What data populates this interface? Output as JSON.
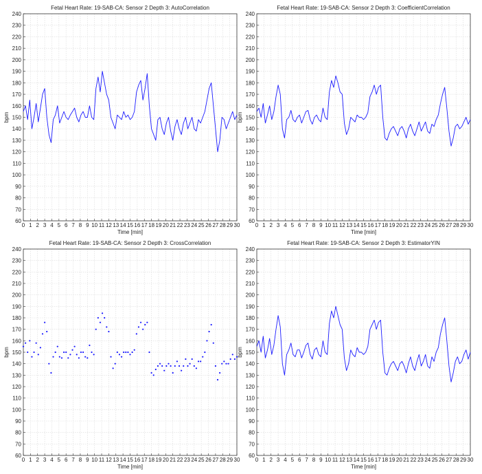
{
  "figure": {
    "background": "#ffffff"
  },
  "colors": {
    "series": "#1a1aff",
    "grid": "#d9d9d9",
    "axis": "#333333",
    "text": "#222222"
  },
  "chart_data": [
    {
      "type": "line",
      "title": "Fetal Heart Rate: 19-SAB-CA: Sensor 2 Depth 3: AutoCorrelation",
      "xlabel": "Time [min]",
      "ylabel": "bpm",
      "xlim": [
        0,
        30
      ],
      "ylim": [
        60,
        240
      ],
      "xticks": [
        0,
        1,
        2,
        3,
        4,
        5,
        6,
        7,
        8,
        9,
        10,
        11,
        12,
        13,
        14,
        15,
        16,
        17,
        18,
        19,
        20,
        21,
        22,
        23,
        24,
        25,
        26,
        27,
        28,
        29,
        30
      ],
      "yticks": [
        60,
        70,
        80,
        90,
        100,
        110,
        120,
        130,
        140,
        150,
        160,
        170,
        180,
        190,
        200,
        210,
        220,
        230,
        240
      ],
      "grid": true,
      "legend": "none",
      "series": [
        {
          "x": [
            0.0,
            0.3,
            0.6,
            0.9,
            1.2,
            1.5,
            1.8,
            2.1,
            2.4,
            2.7,
            3.0,
            3.3,
            3.6,
            3.9,
            4.2,
            4.5,
            4.8,
            5.1,
            5.4,
            5.7,
            6.0,
            6.3,
            6.6,
            6.9,
            7.2,
            7.5,
            7.8,
            8.1,
            8.4,
            8.7,
            9.0,
            9.3,
            9.6,
            9.9,
            10.2,
            10.5,
            10.8,
            11.1,
            11.4,
            11.7,
            12.0,
            12.3,
            12.6,
            12.9,
            13.2,
            13.5,
            13.8,
            14.1,
            14.4,
            14.7,
            15.0,
            15.3,
            15.6,
            15.9,
            16.2,
            16.5,
            16.8,
            17.1,
            17.4,
            17.7,
            18.0,
            18.3,
            18.6,
            18.9,
            19.2,
            19.5,
            19.8,
            20.1,
            20.4,
            20.7,
            21.0,
            21.3,
            21.6,
            21.9,
            22.2,
            22.5,
            22.8,
            23.1,
            23.4,
            23.7,
            24.0,
            24.3,
            24.6,
            24.9,
            25.2,
            25.5,
            25.8,
            26.1,
            26.4,
            26.7,
            27.0,
            27.3,
            27.6,
            27.9,
            28.2,
            28.5,
            28.8,
            29.1,
            29.4,
            29.7,
            30.0
          ],
          "y": [
            155,
            160,
            148,
            165,
            140,
            150,
            162,
            146,
            158,
            170,
            175,
            150,
            135,
            128,
            148,
            152,
            160,
            145,
            150,
            155,
            150,
            148,
            152,
            155,
            158,
            150,
            146,
            152,
            155,
            150,
            150,
            160,
            150,
            148,
            175,
            185,
            172,
            190,
            180,
            170,
            165,
            150,
            145,
            140,
            152,
            150,
            148,
            155,
            150,
            152,
            148,
            150,
            155,
            172,
            178,
            182,
            165,
            175,
            188,
            160,
            140,
            135,
            130,
            148,
            150,
            140,
            135,
            145,
            150,
            138,
            130,
            142,
            148,
            140,
            135,
            145,
            150,
            140,
            145,
            150,
            140,
            138,
            148,
            145,
            150,
            155,
            165,
            175,
            180,
            160,
            140,
            120,
            130,
            150,
            148,
            140,
            145,
            150,
            155,
            148,
            152
          ]
        }
      ]
    },
    {
      "type": "line",
      "title": "Fetal Heart Rate: 19-SAB-CA: Sensor 2 Depth 3: CoefficientCorrelation",
      "xlabel": "Time [min]",
      "ylabel": "bpm",
      "xlim": [
        0,
        30
      ],
      "ylim": [
        60,
        240
      ],
      "xticks": [
        0,
        1,
        2,
        3,
        4,
        5,
        6,
        7,
        8,
        9,
        10,
        11,
        12,
        13,
        14,
        15,
        16,
        17,
        18,
        19,
        20,
        21,
        22,
        23,
        24,
        25,
        26,
        27,
        28,
        29,
        30
      ],
      "yticks": [
        60,
        70,
        80,
        90,
        100,
        110,
        120,
        130,
        140,
        150,
        160,
        170,
        180,
        190,
        200,
        210,
        220,
        230,
        240
      ],
      "grid": true,
      "legend": "none",
      "series": [
        {
          "x": [
            0.0,
            0.3,
            0.6,
            0.9,
            1.2,
            1.5,
            1.8,
            2.1,
            2.4,
            2.7,
            3.0,
            3.3,
            3.6,
            3.9,
            4.2,
            4.5,
            4.8,
            5.1,
            5.4,
            5.7,
            6.0,
            6.3,
            6.6,
            6.9,
            7.2,
            7.5,
            7.8,
            8.1,
            8.4,
            8.7,
            9.0,
            9.3,
            9.6,
            9.9,
            10.2,
            10.5,
            10.8,
            11.1,
            11.4,
            11.7,
            12.0,
            12.3,
            12.6,
            12.9,
            13.2,
            13.5,
            13.8,
            14.1,
            14.4,
            14.7,
            15.0,
            15.3,
            15.6,
            15.9,
            16.2,
            16.5,
            16.8,
            17.1,
            17.4,
            17.7,
            18.0,
            18.3,
            18.6,
            18.9,
            19.2,
            19.5,
            19.8,
            20.1,
            20.4,
            20.7,
            21.0,
            21.3,
            21.6,
            21.9,
            22.2,
            22.5,
            22.8,
            23.1,
            23.4,
            23.7,
            24.0,
            24.3,
            24.6,
            24.9,
            25.2,
            25.5,
            25.8,
            26.1,
            26.4,
            26.7,
            27.0,
            27.3,
            27.6,
            27.9,
            28.2,
            28.5,
            28.8,
            29.1,
            29.4,
            29.7,
            30.0
          ],
          "y": [
            155,
            158,
            150,
            162,
            145,
            152,
            160,
            148,
            155,
            168,
            178,
            170,
            140,
            132,
            148,
            150,
            156,
            148,
            146,
            150,
            152,
            145,
            150,
            155,
            156,
            148,
            144,
            150,
            152,
            148,
            146,
            158,
            150,
            148,
            172,
            182,
            176,
            186,
            180,
            172,
            170,
            145,
            135,
            140,
            150,
            148,
            146,
            152,
            150,
            150,
            148,
            150,
            154,
            168,
            172,
            178,
            170,
            176,
            178,
            150,
            132,
            130,
            136,
            140,
            142,
            138,
            134,
            140,
            142,
            138,
            132,
            140,
            144,
            138,
            134,
            140,
            146,
            138,
            142,
            146,
            138,
            136,
            144,
            142,
            148,
            152,
            162,
            170,
            176,
            158,
            138,
            125,
            132,
            142,
            144,
            140,
            142,
            146,
            150,
            144,
            148
          ]
        }
      ]
    },
    {
      "type": "scatter",
      "title": "Fetal Heart Rate: 19-SAB-CA: Sensor 2 Depth 3: CrossCorrelation",
      "xlabel": "Time [min]",
      "ylabel": "bpm",
      "xlim": [
        0,
        30
      ],
      "ylim": [
        60,
        240
      ],
      "xticks": [
        0,
        1,
        2,
        3,
        4,
        5,
        6,
        7,
        8,
        9,
        10,
        11,
        12,
        13,
        14,
        15,
        16,
        17,
        18,
        19,
        20,
        21,
        22,
        23,
        24,
        25,
        26,
        27,
        28,
        29,
        30
      ],
      "yticks": [
        60,
        70,
        80,
        90,
        100,
        110,
        120,
        130,
        140,
        150,
        160,
        170,
        180,
        190,
        200,
        210,
        220,
        230,
        240
      ],
      "grid": true,
      "legend": "none",
      "series": [
        {
          "x": [
            0.0,
            0.3,
            0.6,
            0.9,
            1.2,
            1.5,
            1.8,
            2.1,
            2.4,
            2.7,
            3.0,
            3.3,
            3.6,
            3.9,
            4.2,
            4.5,
            4.8,
            5.1,
            5.4,
            5.7,
            6.0,
            6.3,
            6.6,
            6.9,
            7.2,
            7.5,
            7.8,
            8.1,
            8.4,
            8.7,
            9.0,
            9.3,
            9.6,
            9.9,
            10.2,
            10.5,
            10.8,
            11.1,
            11.4,
            11.7,
            12.0,
            12.3,
            12.6,
            12.9,
            13.2,
            13.5,
            13.8,
            14.1,
            14.4,
            14.7,
            15.0,
            15.3,
            15.6,
            15.9,
            16.2,
            16.5,
            16.8,
            17.1,
            17.4,
            17.7,
            18.0,
            18.3,
            18.6,
            18.9,
            19.2,
            19.5,
            19.8,
            20.1,
            20.4,
            20.7,
            21.0,
            21.3,
            21.6,
            21.9,
            22.2,
            22.5,
            22.8,
            23.1,
            23.4,
            23.7,
            24.0,
            24.3,
            24.6,
            24.9,
            25.2,
            25.5,
            25.8,
            26.1,
            26.4,
            26.7,
            27.0,
            27.3,
            27.6,
            27.9,
            28.2,
            28.5,
            28.8,
            29.1,
            29.4,
            29.7,
            30.0
          ],
          "y": [
            155,
            158,
            150,
            160,
            146,
            150,
            158,
            148,
            154,
            166,
            176,
            168,
            140,
            132,
            146,
            150,
            155,
            146,
            145,
            150,
            150,
            145,
            148,
            152,
            155,
            148,
            145,
            150,
            150,
            146,
            145,
            156,
            150,
            148,
            170,
            180,
            176,
            184,
            180,
            172,
            168,
            146,
            136,
            140,
            150,
            148,
            146,
            150,
            150,
            150,
            148,
            150,
            152,
            166,
            172,
            176,
            170,
            174,
            176,
            150,
            132,
            130,
            135,
            138,
            140,
            138,
            134,
            138,
            140,
            138,
            132,
            138,
            142,
            138,
            134,
            138,
            144,
            138,
            140,
            144,
            138,
            136,
            142,
            142,
            146,
            150,
            160,
            168,
            174,
            158,
            138,
            126,
            132,
            140,
            142,
            140,
            140,
            144,
            148,
            144,
            146
          ]
        }
      ]
    },
    {
      "type": "line",
      "title": "Fetal Heart Rate: 19-SAB-CA: Sensor 2 Depth 3: EstimatorYIN",
      "xlabel": "Time [min]",
      "ylabel": "bpm",
      "xlim": [
        0,
        30
      ],
      "ylim": [
        60,
        240
      ],
      "xticks": [
        0,
        1,
        2,
        3,
        4,
        5,
        6,
        7,
        8,
        9,
        10,
        11,
        12,
        13,
        14,
        15,
        16,
        17,
        18,
        19,
        20,
        21,
        22,
        23,
        24,
        25,
        26,
        27,
        28,
        29,
        30
      ],
      "yticks": [
        60,
        70,
        80,
        90,
        100,
        110,
        120,
        130,
        140,
        150,
        160,
        170,
        180,
        190,
        200,
        210,
        220,
        230,
        240
      ],
      "grid": true,
      "legend": "none",
      "series": [
        {
          "x": [
            0.0,
            0.3,
            0.6,
            0.9,
            1.2,
            1.5,
            1.8,
            2.1,
            2.4,
            2.7,
            3.0,
            3.3,
            3.6,
            3.9,
            4.2,
            4.5,
            4.8,
            5.1,
            5.4,
            5.7,
            6.0,
            6.3,
            6.6,
            6.9,
            7.2,
            7.5,
            7.8,
            8.1,
            8.4,
            8.7,
            9.0,
            9.3,
            9.6,
            9.9,
            10.2,
            10.5,
            10.8,
            11.1,
            11.4,
            11.7,
            12.0,
            12.3,
            12.6,
            12.9,
            13.2,
            13.5,
            13.8,
            14.1,
            14.4,
            14.7,
            15.0,
            15.3,
            15.6,
            15.9,
            16.2,
            16.5,
            16.8,
            17.1,
            17.4,
            17.7,
            18.0,
            18.3,
            18.6,
            18.9,
            19.2,
            19.5,
            19.8,
            20.1,
            20.4,
            20.7,
            21.0,
            21.3,
            21.6,
            21.9,
            22.2,
            22.5,
            22.8,
            23.1,
            23.4,
            23.7,
            24.0,
            24.3,
            24.6,
            24.9,
            25.2,
            25.5,
            25.8,
            26.1,
            26.4,
            26.7,
            27.0,
            27.3,
            27.6,
            27.9,
            28.2,
            28.5,
            28.8,
            29.1,
            29.4,
            29.7,
            30.0
          ],
          "y": [
            155,
            160,
            150,
            164,
            145,
            152,
            162,
            148,
            156,
            170,
            182,
            172,
            140,
            130,
            148,
            152,
            158,
            148,
            146,
            152,
            152,
            145,
            150,
            156,
            158,
            148,
            144,
            152,
            154,
            148,
            146,
            160,
            150,
            148,
            175,
            186,
            180,
            190,
            182,
            174,
            170,
            145,
            134,
            140,
            152,
            148,
            146,
            154,
            150,
            150,
            148,
            150,
            155,
            170,
            174,
            178,
            170,
            176,
            178,
            150,
            132,
            130,
            136,
            140,
            142,
            138,
            134,
            140,
            142,
            138,
            132,
            140,
            146,
            138,
            134,
            142,
            148,
            138,
            142,
            148,
            138,
            136,
            146,
            142,
            150,
            154,
            166,
            174,
            180,
            160,
            138,
            124,
            132,
            142,
            146,
            140,
            142,
            148,
            152,
            144,
            150
          ]
        }
      ]
    }
  ]
}
